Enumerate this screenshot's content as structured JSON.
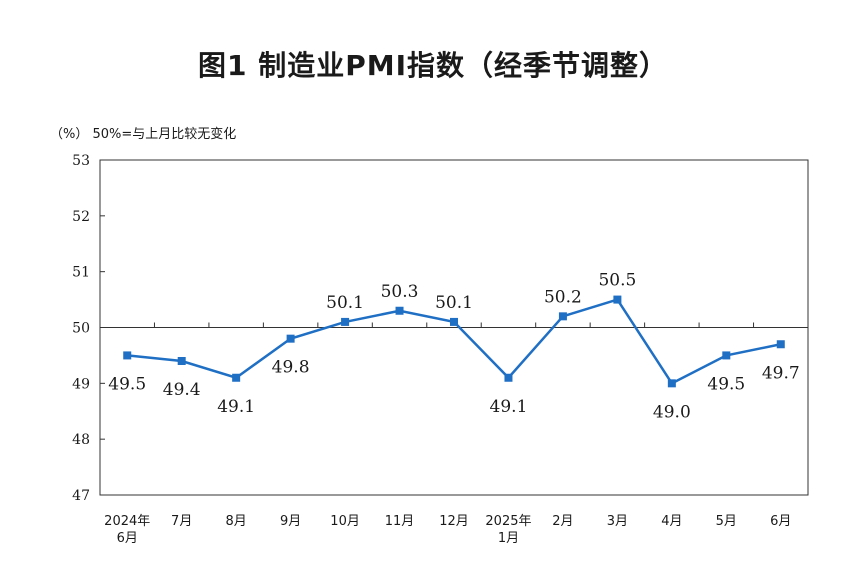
{
  "title": "图1  制造业PMI指数（经季节调整）",
  "unit_note": "（%） 50%=与上月比较无变化",
  "chart_data": {
    "type": "line",
    "title": "图1  制造业PMI指数（经季节调整）",
    "ylabel": "（%）",
    "annotation": "50%=与上月比较无变化",
    "ylim": [
      47,
      53
    ],
    "yticks": [
      "47",
      "48",
      "49",
      "50",
      "51",
      "52",
      "53"
    ],
    "reference_line": 50,
    "categories": [
      [
        "2024年",
        "6月"
      ],
      [
        "7月"
      ],
      [
        "8月"
      ],
      [
        "9月"
      ],
      [
        "10月"
      ],
      [
        "11月"
      ],
      [
        "12月"
      ],
      [
        "2025年",
        "1月"
      ],
      [
        "2月"
      ],
      [
        "3月"
      ],
      [
        "4月"
      ],
      [
        "5月"
      ],
      [
        "6月"
      ]
    ],
    "values": [
      49.5,
      49.4,
      49.1,
      49.8,
      50.1,
      50.3,
      50.1,
      49.1,
      50.2,
      50.5,
      49.0,
      49.5,
      49.7
    ],
    "data_labels": [
      "49.5",
      "49.4",
      "49.1",
      "49.8",
      "50.1",
      "50.3",
      "50.1",
      "49.1",
      "50.2",
      "50.5",
      "49.0",
      "49.5",
      "49.7"
    ],
    "label_position": [
      "below",
      "below",
      "below",
      "below",
      "above",
      "above",
      "above",
      "below",
      "above",
      "above",
      "below",
      "below",
      "below"
    ],
    "series_color": "#1f6fc5",
    "grid": false
  }
}
